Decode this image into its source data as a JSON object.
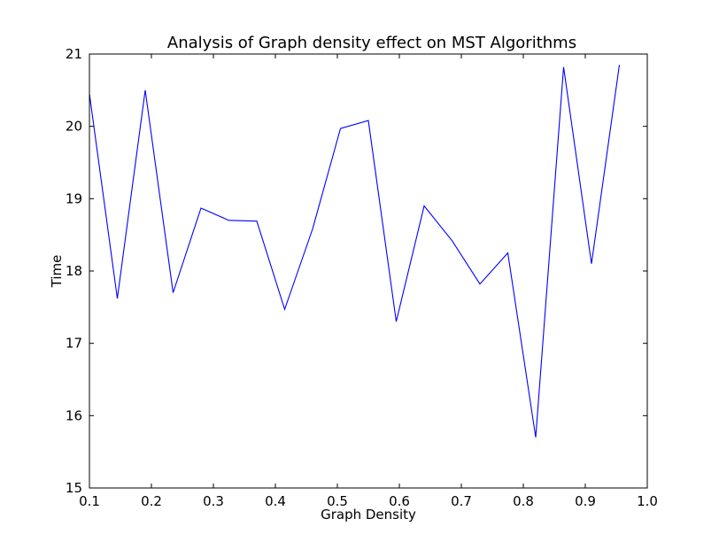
{
  "chart_data": {
    "type": "line",
    "title": "Analysis of Graph density effect on MST Algorithms",
    "xlabel": "Graph Density",
    "ylabel": "Time",
    "xlim": [
      0.1,
      1.0
    ],
    "ylim": [
      15,
      21
    ],
    "xticks": [
      "0.1",
      "0.2",
      "0.3",
      "0.4",
      "0.5",
      "0.6",
      "0.7",
      "0.8",
      "0.9",
      "1.0"
    ],
    "yticks": [
      "15",
      "16",
      "17",
      "18",
      "19",
      "20",
      "21"
    ],
    "grid": false,
    "line_color": "#0000ff",
    "series": [
      {
        "x": [
          0.1,
          0.145,
          0.19,
          0.235,
          0.28,
          0.325,
          0.37,
          0.415,
          0.46,
          0.505,
          0.55,
          0.595,
          0.64,
          0.685,
          0.73,
          0.775,
          0.82,
          0.865,
          0.91,
          0.955
        ],
        "y": [
          20.45,
          17.62,
          20.5,
          17.7,
          18.87,
          18.7,
          18.69,
          17.47,
          18.58,
          19.97,
          20.08,
          17.3,
          18.9,
          18.42,
          17.82,
          18.25,
          15.7,
          20.82,
          18.1,
          20.85
        ]
      }
    ]
  }
}
